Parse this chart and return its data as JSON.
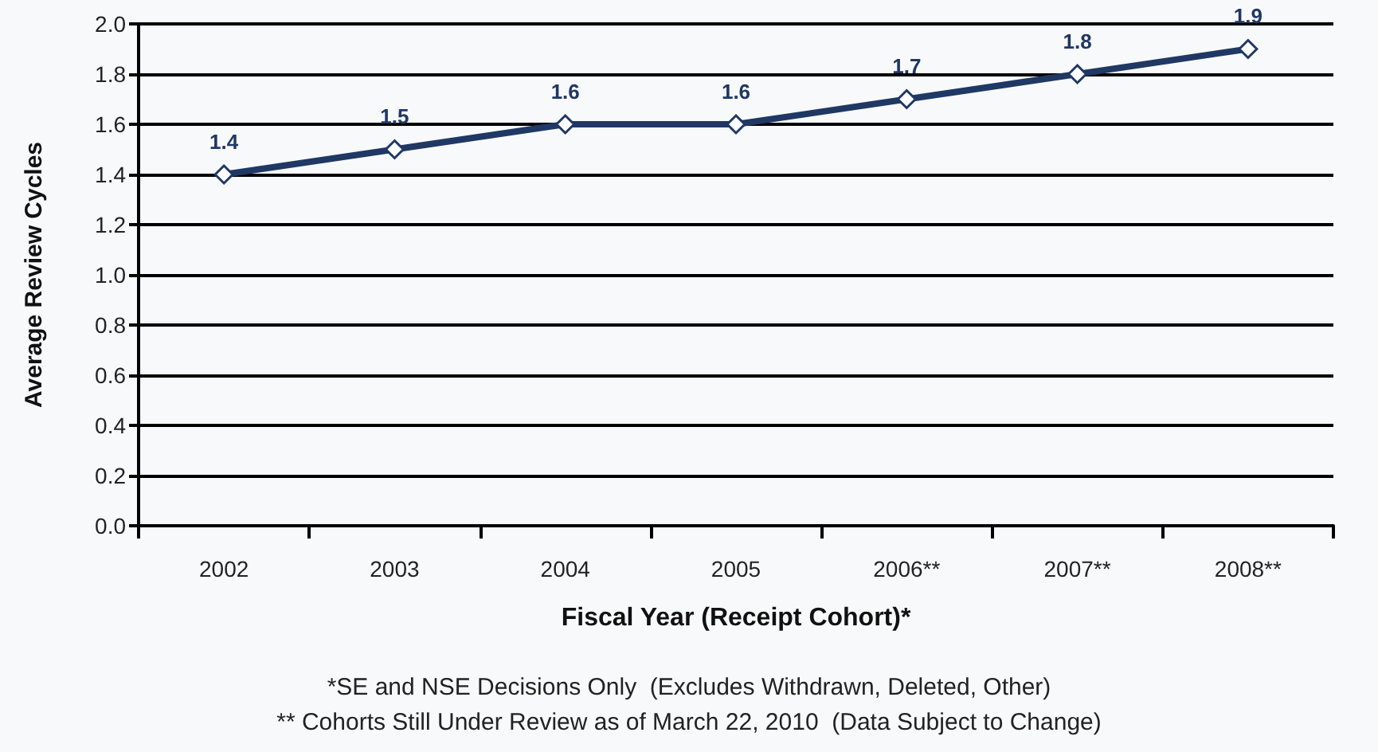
{
  "chart_data": {
    "type": "line",
    "xlabel": "Fiscal Year (Receipt Cohort)*",
    "ylabel": "Average Review Cycles",
    "categories": [
      "2002",
      "2003",
      "2004",
      "2005",
      "2006**",
      "2007**",
      "2008**"
    ],
    "series": [
      {
        "color": "#1f3864",
        "values": [
          1.4,
          1.5,
          1.6,
          1.6,
          1.7,
          1.8,
          1.9
        ]
      }
    ],
    "ylim": [
      0,
      2.0
    ],
    "yticks": [
      {
        "value": 0,
        "label": "0.0"
      },
      {
        "value": 0.2,
        "label": "0.2"
      },
      {
        "value": 0.4,
        "label": "0.4"
      },
      {
        "value": 0.6,
        "label": "0.6"
      },
      {
        "value": 0.8,
        "label": "0.8"
      },
      {
        "value": 1.0,
        "label": "1.0"
      },
      {
        "value": 1.2,
        "label": "1.2"
      },
      {
        "value": 1.4,
        "label": "1.4"
      },
      {
        "value": 1.6,
        "label": "1.6"
      },
      {
        "value": 1.8,
        "label": "1.8"
      },
      {
        "value": 2.0,
        "label": "2.0"
      }
    ],
    "grid": "y",
    "data_labels": true,
    "marker": "diamond",
    "line_style": "solid",
    "annotations": [
      "*SE and NSE Decisions Only  (Excludes Withdrawn, Deleted, Other)",
      "** Cohorts Still Under Review as of March 22, 2010  (Data Subject to Change)"
    ]
  }
}
